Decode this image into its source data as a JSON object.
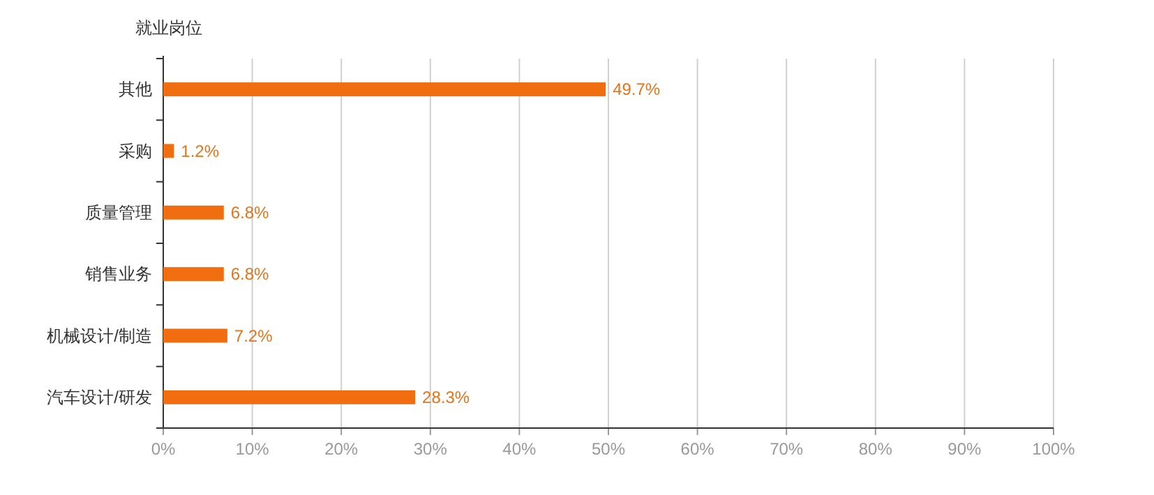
{
  "chart_data": {
    "type": "bar",
    "orientation": "horizontal",
    "ylabel": "就业岗位",
    "categories": [
      "其他",
      "采购",
      "质量管理",
      "销售业务",
      "机械设计/制造",
      "汽车设计/研发"
    ],
    "series": [
      {
        "color": "#f06e10",
        "values": [
          49.7,
          1.2,
          6.8,
          6.8,
          7.2,
          28.3
        ],
        "value_labels": [
          "49.7%",
          "1.2%",
          "6.8%",
          "6.8%",
          "7.2%",
          "28.3%"
        ]
      }
    ],
    "xlim": [
      0,
      100
    ],
    "xticks": [
      {
        "value": 0,
        "label": "0%"
      },
      {
        "value": 10,
        "label": "10%"
      },
      {
        "value": 20,
        "label": "20%"
      },
      {
        "value": 30,
        "label": "30%"
      },
      {
        "value": 40,
        "label": "40%"
      },
      {
        "value": 50,
        "label": "50%"
      },
      {
        "value": 60,
        "label": "60%"
      },
      {
        "value": 70,
        "label": "70%"
      },
      {
        "value": 80,
        "label": "80%"
      },
      {
        "value": 90,
        "label": "90%"
      },
      {
        "value": 100,
        "label": "100%"
      }
    ],
    "grid": "x"
  }
}
